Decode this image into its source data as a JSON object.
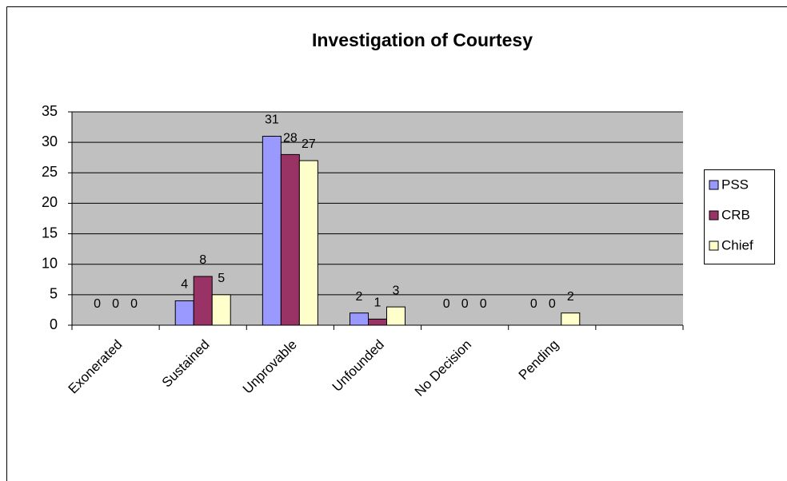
{
  "chart_data": {
    "type": "bar",
    "title": "Investigation of Courtesy",
    "categories": [
      "Exonerated",
      "Sustained",
      "Unprovable",
      "Unfounded",
      "No Decision",
      "Pending",
      null
    ],
    "series": [
      {
        "name": "PSS",
        "color": "#9999ff",
        "values": [
          0,
          4,
          31,
          2,
          0,
          0,
          null
        ]
      },
      {
        "name": "CRB",
        "color": "#993366",
        "values": [
          0,
          8,
          28,
          1,
          0,
          0,
          null
        ]
      },
      {
        "name": "Chief",
        "color": "#ffffcc",
        "values": [
          0,
          5,
          27,
          3,
          0,
          2,
          null
        ]
      }
    ],
    "ylim": [
      0,
      35
    ],
    "yticks": [
      0,
      5,
      10,
      15,
      20,
      25,
      30,
      35
    ],
    "grid": true,
    "legend": "right"
  }
}
